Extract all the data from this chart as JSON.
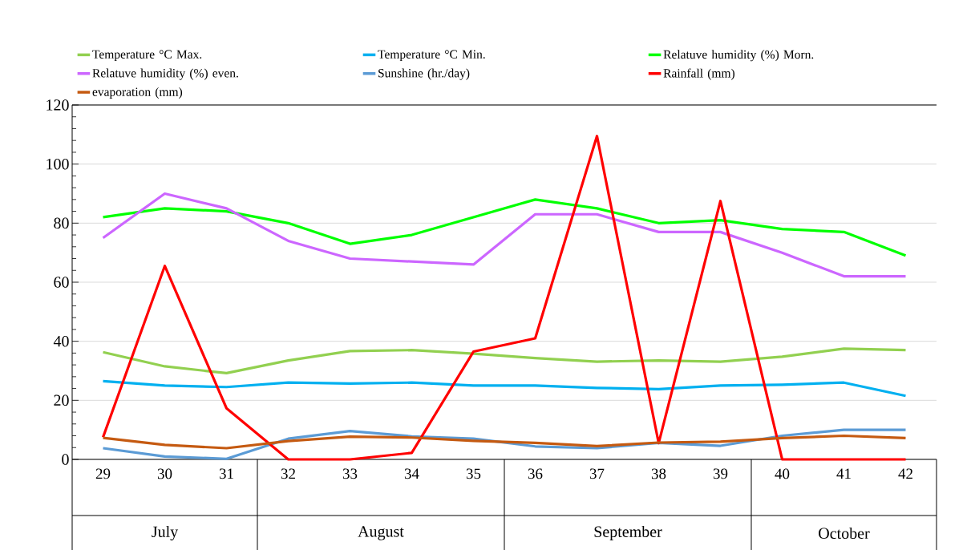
{
  "chart_data": {
    "type": "line",
    "categories": [
      "29",
      "30",
      "31",
      "32",
      "33",
      "34",
      "35",
      "36",
      "37",
      "38",
      "39",
      "40",
      "41",
      "42"
    ],
    "series": [
      {
        "name": "Temperature °C Max.",
        "color": "#92d050",
        "values": [
          36.3,
          31.5,
          29.2,
          33.5,
          36.7,
          37.0,
          35.8,
          34.3,
          33.1,
          33.5,
          33.1,
          34.8,
          37.5,
          37.0
        ]
      },
      {
        "name": "Temperature °C Min.",
        "color": "#00b0f0",
        "values": [
          26.5,
          25.0,
          24.5,
          26.0,
          25.7,
          26.0,
          25.0,
          25.0,
          24.2,
          23.8,
          25.0,
          25.3,
          26.0,
          21.5
        ]
      },
      {
        "name": "Relatuve humidity (%) Morn.",
        "color": "#00ff00",
        "values": [
          82,
          85,
          84,
          80,
          73,
          76,
          82,
          88,
          85,
          80,
          81,
          78,
          77,
          69
        ]
      },
      {
        "name": "Relatuve humidity (%) even.",
        "color": "#cc66ff",
        "values": [
          75,
          90,
          85,
          74,
          68,
          67,
          66,
          83,
          83,
          77,
          77,
          70,
          62,
          62
        ]
      },
      {
        "name": "Sunshine (hr./day)",
        "color": "#5b9bd5",
        "values": [
          3.8,
          1.0,
          0.2,
          7.0,
          9.6,
          7.8,
          7.0,
          4.4,
          3.8,
          5.6,
          4.6,
          8.0,
          10.0,
          10.0
        ]
      },
      {
        "name": "Rainfall (mm)",
        "color": "#ff0000",
        "values": [
          7.5,
          65.5,
          17.3,
          0,
          0,
          2.2,
          36.5,
          41.0,
          109.5,
          5.5,
          87.5,
          0,
          0,
          0
        ]
      },
      {
        "name": "evaporation (mm)",
        "color": "#c55a11",
        "values": [
          7.3,
          4.9,
          3.8,
          6.2,
          7.7,
          7.4,
          6.3,
          5.6,
          4.5,
          5.7,
          6.0,
          7.2,
          8.0,
          7.2
        ]
      }
    ],
    "annotations": [
      "July",
      "August",
      "September",
      "October"
    ],
    "ylim": [
      0,
      120
    ],
    "yticks": [
      0,
      20,
      40,
      60,
      80,
      100,
      120
    ],
    "grid": "y",
    "legend": "top",
    "marker": "none",
    "line_style": "solid"
  }
}
